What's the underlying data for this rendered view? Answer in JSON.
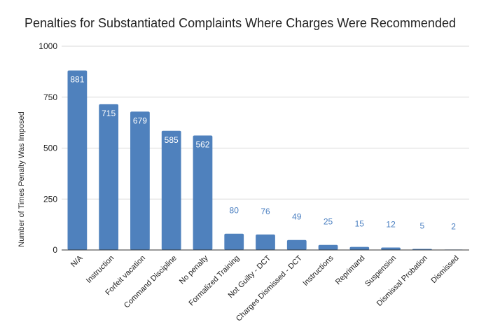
{
  "chart_data": {
    "type": "bar",
    "title": "Penalties for Substantiated Complaints Where Charges Were Recommended",
    "xlabel": "",
    "ylabel": "Number of Times Penalty Was Imposed",
    "ylim": [
      0,
      1000
    ],
    "yticks": [
      "0",
      "250",
      "500",
      "750",
      "1000"
    ],
    "categories": [
      "N/A",
      "Instruction",
      "Forfeit vacation",
      "Command Discipline",
      "No penalty",
      "Formalized Training",
      "Not Guilty - DCT",
      "Charges Dismissed - DCT",
      "Instructions",
      "Reprimand",
      "Suspension",
      "Dismissal Probation",
      "Dismissed"
    ],
    "values": [
      881,
      715,
      679,
      585,
      562,
      80,
      76,
      49,
      25,
      15,
      12,
      5,
      2
    ],
    "grid": true,
    "legend": "none",
    "bar_color": "#4f81bd",
    "label_inside_color": "#ffffff",
    "label_outside_color": "#4a7fc1"
  }
}
